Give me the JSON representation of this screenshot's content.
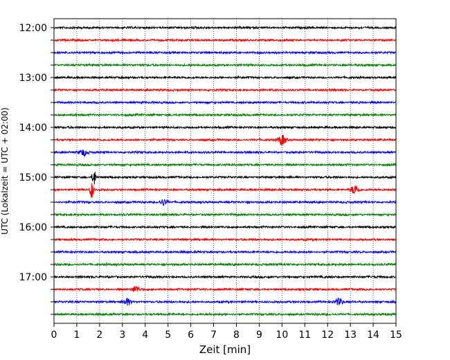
{
  "chart_data": {
    "type": "line",
    "title": "",
    "xlabel": "Zeit  [min]",
    "ylabel": "UTC (Lokalzeit = UTC + 02:00)",
    "xlim": [
      0,
      15
    ],
    "x_ticks": [
      "0",
      "1",
      "2",
      "3",
      "4",
      "5",
      "6",
      "7",
      "8",
      "9",
      "10",
      "11",
      "12",
      "13",
      "14",
      "15"
    ],
    "y_ticks": [
      "12:00",
      "13:00",
      "14:00",
      "15:00",
      "16:00",
      "17:00"
    ],
    "trace_interval_minutes": 15,
    "trace_count": 24,
    "trace_colors": [
      "#000000",
      "#ff0000",
      "#0000ff",
      "#008000"
    ],
    "vertical_grid": true,
    "grid_style": "dotted",
    "events": [
      {
        "trace": "14:15",
        "minute": 10.0,
        "amplitude": "medium"
      },
      {
        "trace": "14:30",
        "minute": 1.3,
        "amplitude": "small"
      },
      {
        "trace": "15:00",
        "minute": 1.75,
        "amplitude": "large"
      },
      {
        "trace": "15:15",
        "minute": 1.65,
        "amplitude": "large"
      },
      {
        "trace": "15:15",
        "minute": 13.2,
        "amplitude": "medium"
      },
      {
        "trace": "15:30",
        "minute": 4.8,
        "amplitude": "small"
      },
      {
        "trace": "17:15",
        "minute": 3.6,
        "amplitude": "small"
      },
      {
        "trace": "17:30",
        "minute": 3.2,
        "amplitude": "small"
      },
      {
        "trace": "17:30",
        "minute": 12.5,
        "amplitude": "small"
      }
    ]
  }
}
